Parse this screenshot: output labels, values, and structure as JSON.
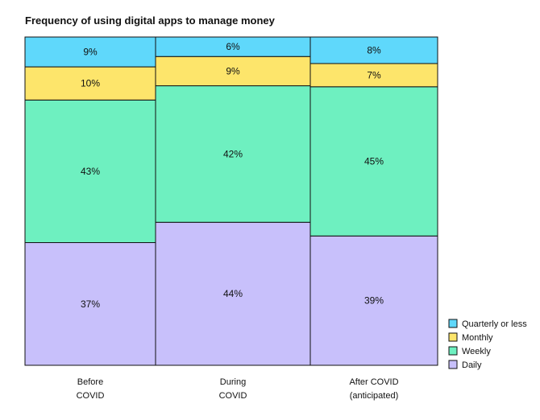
{
  "chart_data": {
    "type": "bar",
    "stacked": true,
    "percent_stacked": true,
    "variable_width": true,
    "title": "Frequency of using digital apps to manage money",
    "xlabel": "",
    "ylabel": "",
    "ylim": [
      0,
      100
    ],
    "grid": false,
    "legend_position": "bottom-right",
    "categories": [
      [
        "Before",
        "COVID"
      ],
      [
        "During",
        "COVID"
      ],
      [
        "After COVID",
        "(anticipated)"
      ]
    ],
    "series": [
      {
        "name": "Daily",
        "color": "#c8c0fb",
        "values": [
          37,
          44,
          39
        ]
      },
      {
        "name": "Weekly",
        "color": "#6ef0c0",
        "values": [
          43,
          42,
          45
        ]
      },
      {
        "name": "Monthly",
        "color": "#fde56b",
        "values": [
          10,
          9,
          7
        ]
      },
      {
        "name": "Quarterly or less",
        "color": "#5fd8fb",
        "values": [
          9,
          6,
          8
        ]
      }
    ],
    "data_labels": [
      [
        "37%",
        "43%",
        "10%",
        "9%"
      ],
      [
        "44%",
        "42%",
        "9%",
        "6%"
      ],
      [
        "39%",
        "45%",
        "7%",
        "8%"
      ]
    ],
    "legend_order": [
      "Quarterly or less",
      "Monthly",
      "Weekly",
      "Daily"
    ],
    "colors": {
      "outline": "#111111",
      "text": "#111111"
    }
  }
}
